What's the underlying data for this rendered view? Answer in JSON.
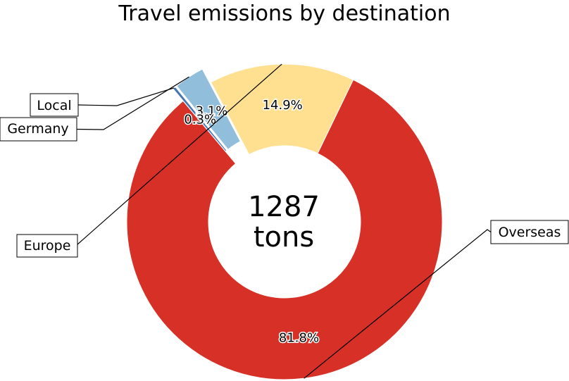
{
  "chart_data": {
    "type": "pie",
    "title": "Travel emissions by destination",
    "center_label": [
      "1287",
      "tons"
    ],
    "slices": [
      {
        "label": "Overseas",
        "percent_label": "81.8%",
        "value": 81.8,
        "color": "#d73027"
      },
      {
        "label": "Europe",
        "percent_label": "14.9%",
        "value": 14.9,
        "color": "#fee090"
      },
      {
        "label": "Germany",
        "percent_label": "3.1%",
        "value": 3.1,
        "color": "#91bfdb",
        "exploded": true
      },
      {
        "label": "Local",
        "percent_label": "0.3%",
        "value": 0.3,
        "color": "#4575b4",
        "exploded": true
      }
    ]
  }
}
